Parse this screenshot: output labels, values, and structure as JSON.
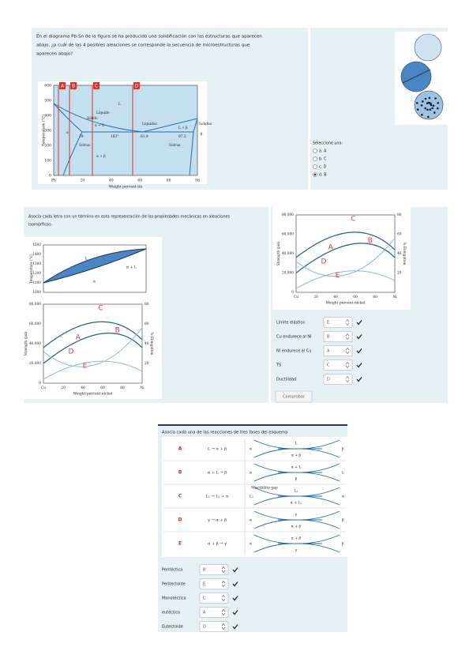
{
  "q1": {
    "text": [
      "En el diagrama Pb-Sn de la figura se ha producido una solidificación con las estructuras que aparecen",
      "abajo, ¿a cuál de las 4 posibles aleaciones se corresponde la secuencia de microestructuras que",
      "aparecen abajo?"
    ],
    "figure": {
      "yticks": [
        600,
        500,
        400,
        300,
        200,
        100,
        0
      ],
      "xticks": [
        "Pb",
        "20",
        "40",
        "60",
        "80",
        "Sn"
      ],
      "y_label": "Temperature (°C)",
      "x_label": "Weight percent tin",
      "alloys": [
        "A",
        "B",
        "C",
        "D"
      ],
      "labels": [
        "L",
        "Líquido",
        "Sólido",
        "α + L",
        "Liquidus",
        "L + β",
        "Solidus",
        "α",
        "β",
        "α + β",
        "19",
        "183°",
        "61.9",
        "97.5",
        "Solvus",
        "Solvus"
      ]
    },
    "prompt": "Seleccione una:",
    "options": [
      "a. A",
      "b. C",
      "c. D",
      "d. B"
    ],
    "selected": 3
  },
  "q2": {
    "text": [
      "Asocia cada letra con un  término en esta representación de las propiedades mecánicas en aleaciones",
      "isomórficas:"
    ],
    "temp": {
      "yticks": [
        1500,
        1400,
        1300,
        1200,
        1100,
        1000
      ],
      "y_label": "Temperature (°C)",
      "labels": [
        "L",
        "α + L",
        "α"
      ]
    },
    "strength": {
      "yticks": [
        "80,000",
        "60,000",
        "40,000",
        "20,000",
        "0"
      ],
      "y2ticks": [
        80,
        60,
        40,
        20
      ],
      "xticks": [
        "Cu",
        "20",
        "40",
        "60",
        "80",
        "Ni"
      ],
      "y_label": "Strength (psi)",
      "y2_label": "% Elongation",
      "x_label": "Weight percent nickel",
      "letters": [
        "A",
        "B",
        "C",
        "D",
        "E"
      ]
    },
    "rows": [
      {
        "label": "Límite elástico",
        "answer": "E"
      },
      {
        "label": "Cu endurece al Ni",
        "answer": "B"
      },
      {
        "label": "Ni endurece al Cu",
        "answer": "A"
      },
      {
        "label": "TS",
        "answer": "C"
      },
      {
        "label": "Ductilidad",
        "answer": "D"
      }
    ],
    "button": "Comprobar"
  },
  "q3": {
    "title": "Asocia cada una de las reacciones de tres fases del esquema",
    "rows": [
      {
        "letter": "A",
        "reaction": "L → α + β",
        "schema": [
          "α",
          "L",
          "α + β",
          "β"
        ]
      },
      {
        "letter": "B",
        "reaction": "α + L → β",
        "schema": [
          "α",
          "α + L",
          "β",
          "L"
        ]
      },
      {
        "letter": "C",
        "reaction": "L₁ → L₂ + α",
        "schema": [
          "L₂",
          "L₁",
          "α + L₂",
          "α",
          "Miscibility gap"
        ]
      },
      {
        "letter": "D",
        "reaction": "γ → α + β",
        "schema": [
          "α",
          "γ",
          "α + β",
          "β"
        ]
      },
      {
        "letter": "E",
        "reaction": "α + β → γ",
        "schema": [
          "α",
          "α + β",
          "γ",
          "β"
        ]
      }
    ],
    "matches": [
      {
        "label": "Peritéctica",
        "answer": "B"
      },
      {
        "label": "Peritectoide",
        "answer": "E"
      },
      {
        "label": "Monotéctica",
        "answer": "C"
      },
      {
        "label": "eutéctico",
        "answer": "A"
      },
      {
        "label": "Eutectoide",
        "answer": "D"
      }
    ]
  }
}
